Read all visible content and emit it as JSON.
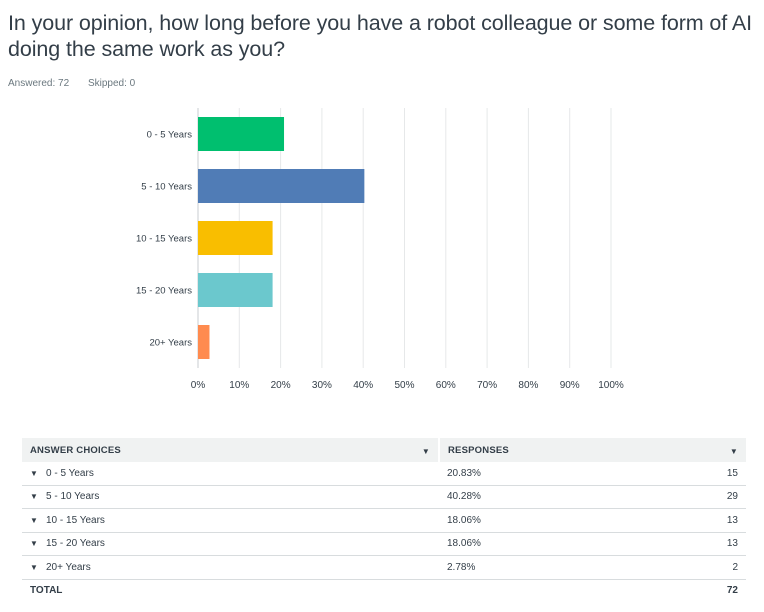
{
  "question": {
    "title": "In your opinion, how long before you have a robot colleague or some form of AI doing the same work as you?",
    "answered_text": "Answered: 72",
    "skipped_text": "Skipped: 0"
  },
  "chart_data": {
    "type": "bar",
    "orientation": "horizontal",
    "categories": [
      "0 - 5 Years",
      "5 - 10  Years",
      "10 - 15 Years",
      "15 - 20 Years",
      "20+ Years"
    ],
    "values": [
      20.83,
      40.28,
      18.06,
      18.06,
      2.78
    ],
    "colors": [
      "#00bf6f",
      "#507cb6",
      "#f9be00",
      "#6bc8cd",
      "#ff8b4f"
    ],
    "xlim": [
      0,
      100
    ],
    "x_ticks": [
      "0%",
      "10%",
      "20%",
      "30%",
      "40%",
      "50%",
      "60%",
      "70%",
      "80%",
      "90%",
      "100%"
    ],
    "grid": true
  },
  "table": {
    "header_choice": "ANSWER CHOICES",
    "header_responses": "RESPONSES",
    "rows": [
      {
        "label": "0 - 5 Years",
        "percent": "20.83%",
        "count": "15"
      },
      {
        "label": "5 - 10  Years",
        "percent": "40.28%",
        "count": "29"
      },
      {
        "label": "10 - 15 Years",
        "percent": "18.06%",
        "count": "13"
      },
      {
        "label": "15 - 20 Years",
        "percent": "18.06%",
        "count": "13"
      },
      {
        "label": "20+ Years",
        "percent": "2.78%",
        "count": "2"
      }
    ],
    "total_label": "TOTAL",
    "total_count": "72"
  },
  "icons": {
    "sort_caret": "▼",
    "row_caret": "▼"
  }
}
